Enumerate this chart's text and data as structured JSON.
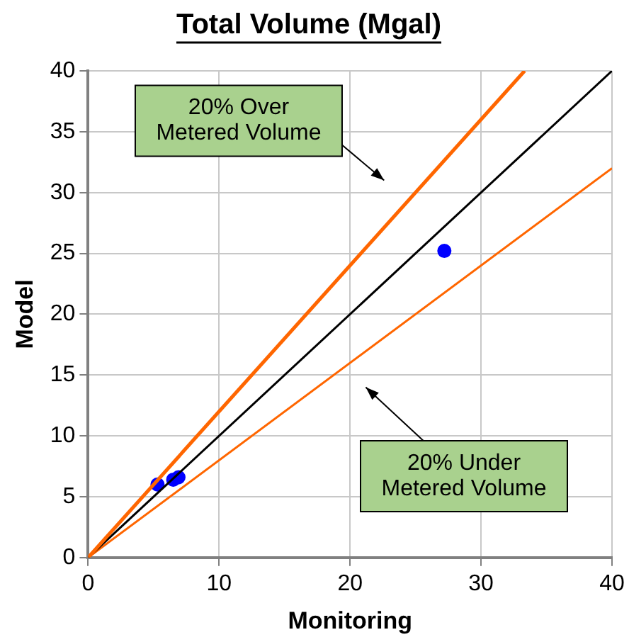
{
  "chart_data": {
    "type": "scatter",
    "title": "Total Volume (Mgal)",
    "xlabel": "Monitoring",
    "ylabel": "Model",
    "series": [
      {
        "type": "line",
        "color": "#ff6600",
        "x": [
          0,
          33.33
        ],
        "values": [
          0,
          40
        ],
        "marker": "none"
      },
      {
        "type": "line",
        "color": "#000000",
        "x": [
          0,
          40
        ],
        "values": [
          0,
          40
        ],
        "marker": "none"
      },
      {
        "type": "line",
        "color": "#ff6600",
        "x": [
          0,
          40
        ],
        "values": [
          0,
          32
        ],
        "marker": "none"
      },
      {
        "type": "scatter",
        "color": "#0000ff",
        "x": [
          5.3,
          6.5,
          6.9,
          27.2
        ],
        "values": [
          6.0,
          6.4,
          6.6,
          25.2
        ],
        "marker": "circle"
      }
    ],
    "xlim": [
      0,
      40
    ],
    "xticks": [
      0,
      10,
      20,
      30,
      40
    ],
    "ylim": [
      0,
      40
    ],
    "yticks": [
      0,
      5,
      10,
      15,
      20,
      25,
      30,
      35,
      40
    ],
    "grid": true,
    "legend": false,
    "annotations": [
      "20% Over Metered Volume",
      "20% Under Metered Volume"
    ]
  }
}
